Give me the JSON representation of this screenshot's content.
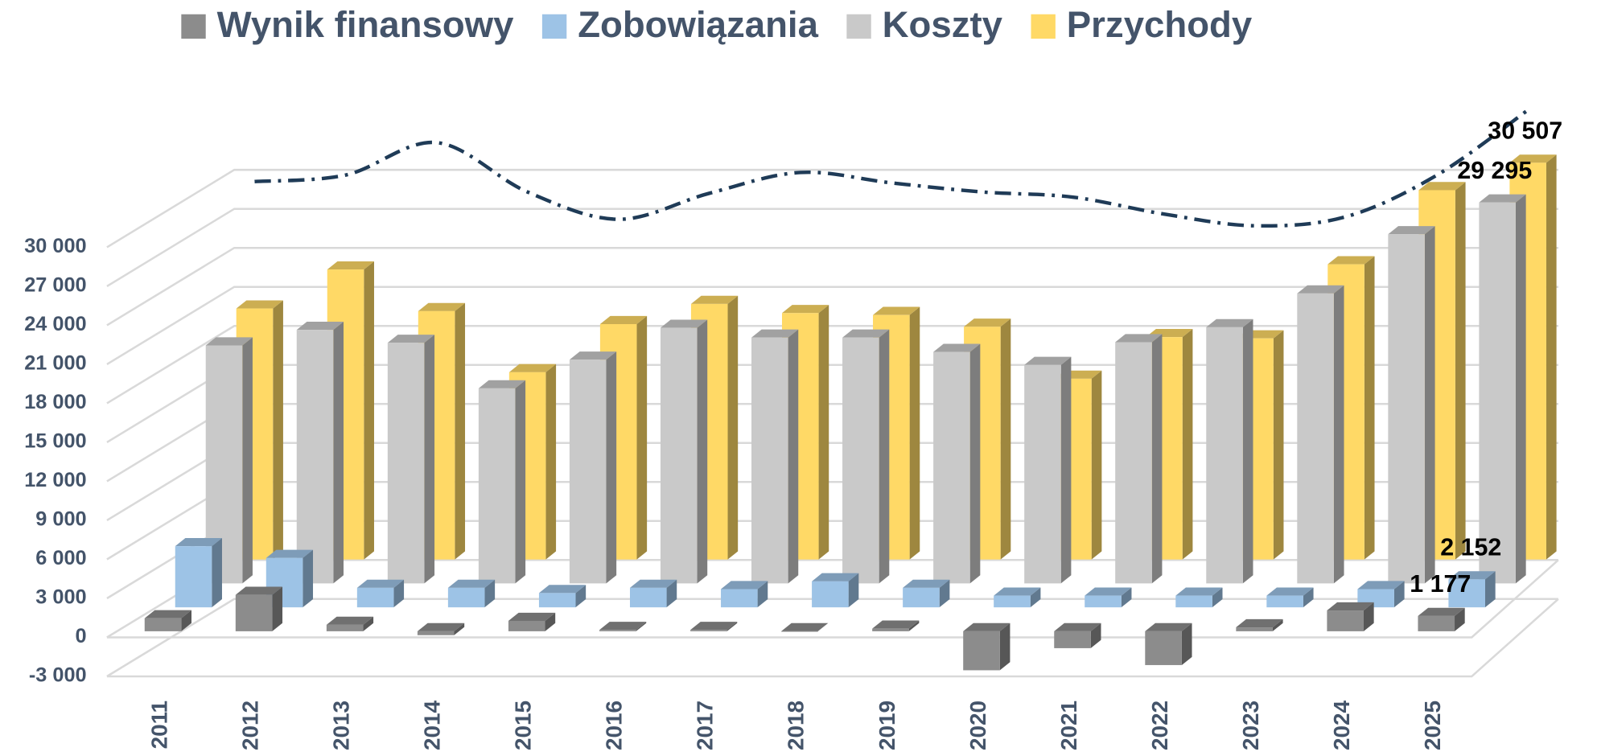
{
  "chart_data": {
    "type": "bar3d",
    "categories": [
      "2011",
      "2012",
      "2013",
      "2014",
      "2015",
      "2016",
      "2017",
      "2018",
      "2019",
      "2020",
      "2021",
      "2022",
      "2023",
      "2024",
      "2025"
    ],
    "series": [
      {
        "name": "Wynik finansowy",
        "color": "#8c8c8c",
        "values": [
          1000,
          2800,
          500,
          -300,
          800,
          100,
          100,
          0,
          200,
          -3000,
          -1300,
          -2600,
          300,
          1600,
          1177
        ],
        "value_labels": [
          null,
          null,
          null,
          null,
          null,
          null,
          null,
          null,
          null,
          null,
          null,
          null,
          null,
          null,
          "1 177"
        ]
      },
      {
        "name": "Zobowiązania",
        "color": "#9dc3e6",
        "values": [
          4700,
          3800,
          1500,
          1500,
          1100,
          1500,
          1400,
          2000,
          1500,
          900,
          900,
          900,
          900,
          1400,
          2152
        ],
        "value_labels": [
          null,
          null,
          null,
          null,
          null,
          null,
          null,
          null,
          null,
          null,
          null,
          null,
          null,
          null,
          "2 152"
        ]
      },
      {
        "name": "Koszty",
        "color": "#c9c9c9",
        "values": [
          18300,
          19500,
          18500,
          15000,
          17200,
          19650,
          18900,
          18900,
          17800,
          16800,
          18550,
          19700,
          22300,
          26850,
          29295
        ],
        "value_labels": [
          null,
          null,
          null,
          null,
          null,
          null,
          null,
          null,
          null,
          null,
          null,
          null,
          null,
          null,
          "29 295"
        ]
      },
      {
        "name": "Przychody",
        "color": "#ffd966",
        "values": [
          19300,
          22300,
          19100,
          14400,
          18100,
          19650,
          18950,
          18800,
          17900,
          13900,
          17100,
          17000,
          22700,
          28400,
          30507
        ],
        "value_labels": [
          null,
          null,
          null,
          null,
          null,
          null,
          null,
          null,
          null,
          null,
          null,
          null,
          null,
          null,
          "30 507"
        ]
      },
      {
        "color": "#1f3b57",
        "line": "dashdot",
        "values": [
          29100,
          29600,
          32100,
          28300,
          26200,
          28200,
          29800,
          29000,
          28300,
          27900,
          26600,
          25700,
          26400,
          29600,
          34600
        ]
      }
    ],
    "ylim": [
      -3000,
      30000
    ],
    "yticks": [
      {
        "value": -3000,
        "label": "-3 000"
      },
      0,
      {
        "value": 3000,
        "label": "3 000"
      },
      {
        "value": 6000,
        "label": "6 000"
      },
      {
        "value": 9000,
        "label": "9 000"
      },
      {
        "value": 12000,
        "label": "12 000"
      },
      {
        "value": 15000,
        "label": "15 000"
      },
      {
        "value": 18000,
        "label": "18 000"
      },
      {
        "value": 21000,
        "label": "21 000"
      },
      {
        "value": 24000,
        "label": "24 000"
      },
      {
        "value": 27000,
        "label": "27 000"
      },
      {
        "value": 30000,
        "label": "30 000"
      }
    ],
    "grid": true,
    "legend": "top"
  }
}
